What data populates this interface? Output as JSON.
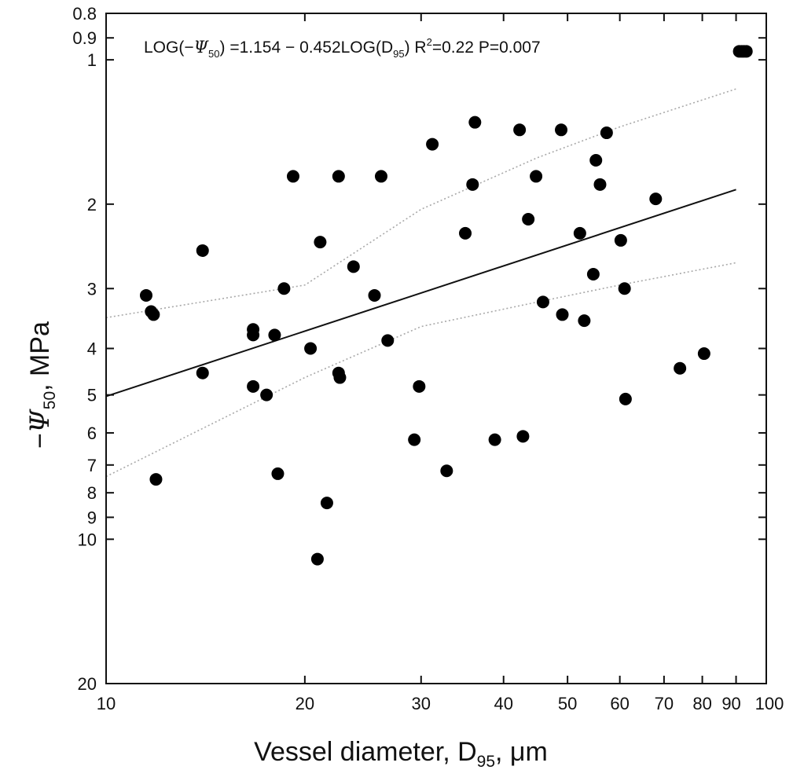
{
  "chart_data": {
    "type": "scatter",
    "title": "",
    "xlabel": "Vessel diameter, D",
    "xlabel_sub": "95",
    "xlabel_unit": ", μm",
    "ylabel_prefix": "−",
    "ylabel_symbol": "Ψ",
    "ylabel_sub": "50",
    "ylabel_unit": ", MPa",
    "x_scale": "log",
    "y_scale": "log",
    "y_reversed": true,
    "xlim": [
      10,
      100
    ],
    "ylim": [
      0.8,
      20
    ],
    "x_ticks": [
      10,
      20,
      30,
      40,
      50,
      60,
      70,
      80,
      90,
      100
    ],
    "y_ticks": [
      0.8,
      0.9,
      1,
      2,
      3,
      4,
      5,
      6,
      7,
      8,
      9,
      10,
      20
    ],
    "grid": false,
    "equation": {
      "prefix": "LOG(−",
      "symbol": "Ψ",
      "sub1": "50",
      "mid": ") =1.154 − 0.452LOG(D",
      "sub2": "95",
      "tail": ") R",
      "sup": "2",
      "end": "=0.22 P=0.007"
    },
    "regression": {
      "intercept": 1.154,
      "slope": -0.452,
      "r2": 0.22,
      "p": 0.007
    },
    "confidence_band": {
      "upper": [
        [
          10,
          3.45
        ],
        [
          20,
          2.95
        ],
        [
          30,
          2.05
        ],
        [
          45,
          1.6
        ],
        [
          60,
          1.38
        ],
        [
          90,
          1.15
        ]
      ],
      "lower": [
        [
          10,
          7.4
        ],
        [
          20,
          4.6
        ],
        [
          30,
          3.6
        ],
        [
          45,
          3.2
        ],
        [
          60,
          2.95
        ],
        [
          90,
          2.65
        ]
      ]
    },
    "series": [
      {
        "points": [
          [
            11.5,
            3.1
          ],
          [
            11.7,
            3.35
          ],
          [
            11.8,
            3.4
          ],
          [
            11.9,
            7.5
          ],
          [
            14.0,
            2.5
          ],
          [
            14.0,
            4.5
          ],
          [
            16.7,
            3.65
          ],
          [
            16.7,
            3.75
          ],
          [
            16.7,
            4.8
          ],
          [
            17.5,
            5.0
          ],
          [
            18.0,
            3.75
          ],
          [
            18.2,
            7.3
          ],
          [
            18.6,
            3.0
          ],
          [
            19.2,
            1.75
          ],
          [
            20.4,
            4.0
          ],
          [
            20.9,
            11.0
          ],
          [
            21.1,
            2.4
          ],
          [
            21.6,
            8.4
          ],
          [
            22.5,
            1.75
          ],
          [
            22.5,
            4.5
          ],
          [
            22.6,
            4.6
          ],
          [
            23.7,
            2.7
          ],
          [
            25.5,
            3.1
          ],
          [
            26.1,
            1.75
          ],
          [
            26.7,
            3.85
          ],
          [
            29.3,
            6.2
          ],
          [
            29.8,
            4.8
          ],
          [
            31.2,
            1.5
          ],
          [
            32.8,
            7.2
          ],
          [
            35.0,
            2.3
          ],
          [
            35.9,
            1.82
          ],
          [
            36.2,
            1.35
          ],
          [
            38.8,
            6.2
          ],
          [
            42.3,
            1.4
          ],
          [
            42.8,
            6.1
          ],
          [
            43.6,
            2.15
          ],
          [
            44.8,
            1.75
          ],
          [
            45.9,
            3.2
          ],
          [
            48.9,
            1.4
          ],
          [
            49.1,
            3.4
          ],
          [
            52.2,
            2.3
          ],
          [
            53.0,
            3.5
          ],
          [
            54.7,
            2.8
          ],
          [
            55.2,
            1.62
          ],
          [
            56.0,
            1.82
          ],
          [
            57.3,
            1.42
          ],
          [
            60.2,
            2.38
          ],
          [
            61.0,
            3.0
          ],
          [
            61.2,
            5.1
          ],
          [
            68.0,
            1.95
          ],
          [
            74.0,
            4.4
          ],
          [
            80.5,
            4.1
          ],
          [
            91.0,
            0.96
          ],
          [
            91.8,
            0.96
          ],
          [
            92.5,
            0.96
          ],
          [
            93.3,
            0.96
          ]
        ]
      }
    ]
  }
}
